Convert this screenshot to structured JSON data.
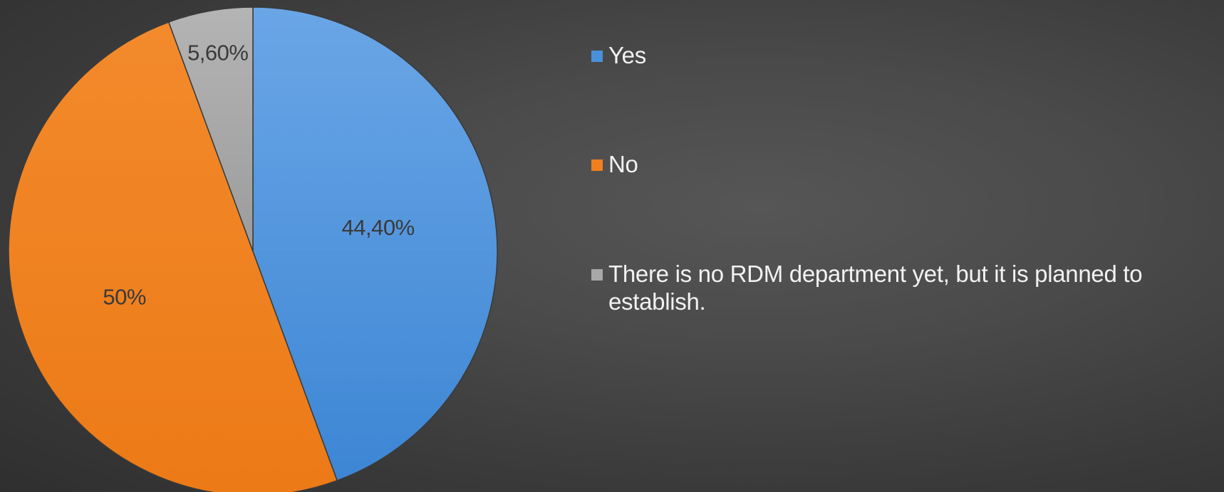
{
  "chart_data": {
    "type": "pie",
    "slices": [
      {
        "label": "Yes",
        "value": 44.4,
        "display": "44,40%",
        "color": "#4a90d9"
      },
      {
        "label": "No",
        "value": 50,
        "display": "50%",
        "color": "#f07f1e"
      },
      {
        "label": "There is no RDM department yet, but it is planned to establish.",
        "value": 5.6,
        "display": "5,60%",
        "color": "#a8a8a8"
      }
    ],
    "start_angle": "12 o'clock",
    "direction": "clockwise",
    "legend": {
      "position": "right",
      "items": [
        {
          "label": "Yes",
          "color": "#4a90d9"
        },
        {
          "label": "No",
          "color": "#f07f1e"
        },
        {
          "label": "There is no RDM department yet, but it is planned to establish.",
          "color": "#a8a8a8"
        }
      ]
    },
    "label_color": "#3a3a3a",
    "background": "#404040"
  }
}
